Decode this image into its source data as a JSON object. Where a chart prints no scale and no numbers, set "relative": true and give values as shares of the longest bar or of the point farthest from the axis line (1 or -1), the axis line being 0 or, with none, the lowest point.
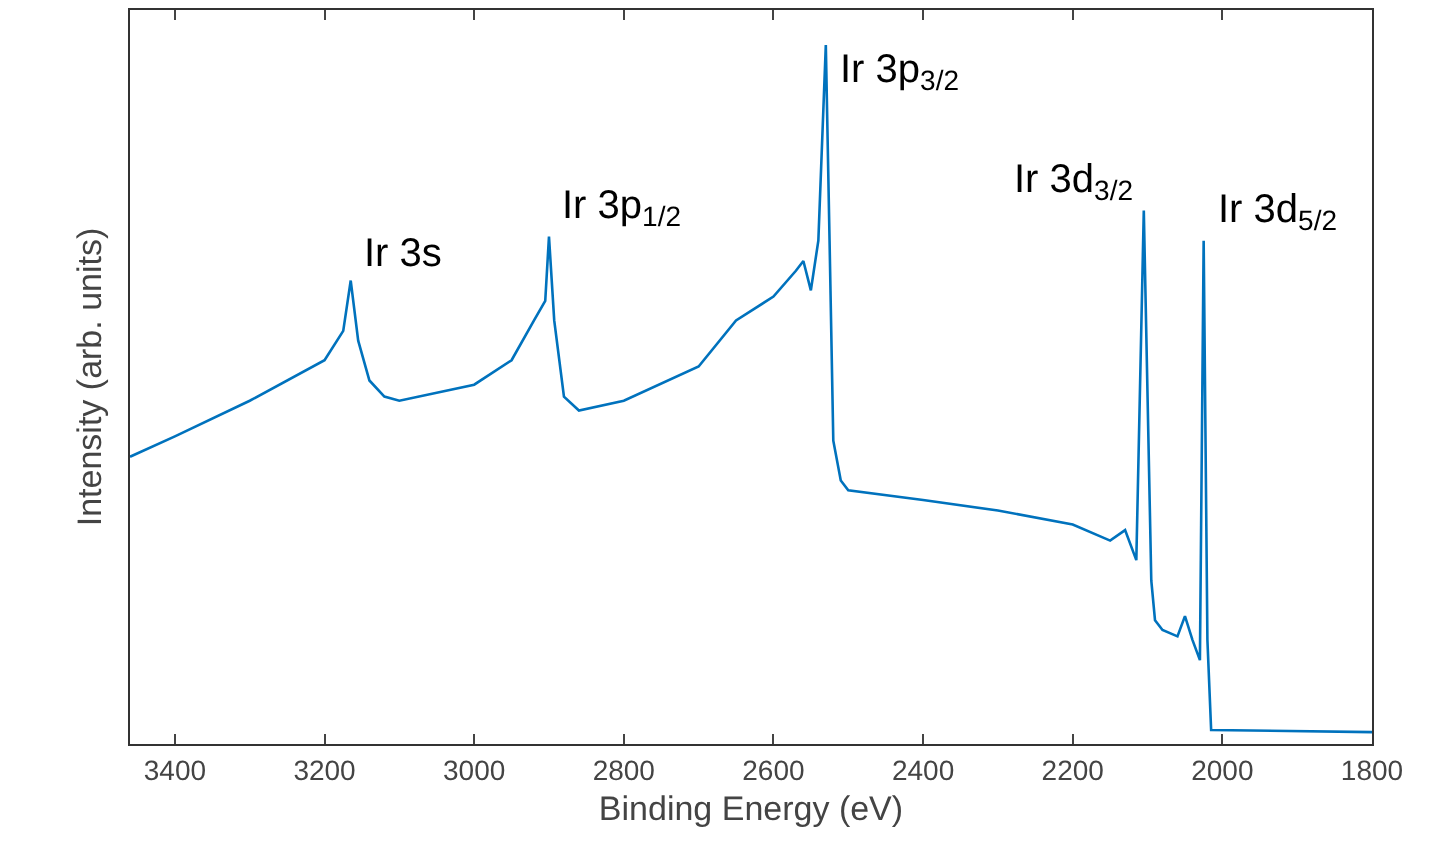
{
  "chart_data": {
    "type": "line",
    "relative": true,
    "xlabel": "Binding Energy (eV)",
    "ylabel": "Intensity (arb. units)",
    "xlim": [
      3460,
      1800
    ],
    "xticks": [
      3400,
      3200,
      3000,
      2800,
      2600,
      2400,
      2200,
      2000,
      1800
    ],
    "x": [
      3460,
      3400,
      3300,
      3200,
      3175,
      3165,
      3155,
      3140,
      3120,
      3100,
      3000,
      2950,
      2920,
      2905,
      2900,
      2893,
      2880,
      2860,
      2800,
      2700,
      2650,
      2600,
      2570,
      2560,
      2550,
      2540,
      2530,
      2525,
      2520,
      2510,
      2500,
      2400,
      2300,
      2200,
      2150,
      2130,
      2115,
      2105,
      2095,
      2090,
      2080,
      2060,
      2050,
      2040,
      2030,
      2025,
      2020,
      2015,
      1800
    ],
    "series": [
      {
        "color": "#0072bd",
        "values": [
          0.411,
          0.44,
          0.491,
          0.549,
          0.591,
          0.663,
          0.577,
          0.52,
          0.497,
          0.491,
          0.514,
          0.549,
          0.606,
          0.634,
          0.726,
          0.606,
          0.497,
          0.477,
          0.491,
          0.54,
          0.606,
          0.64,
          0.677,
          0.691,
          0.649,
          0.72,
          1,
          0.72,
          0.434,
          0.377,
          0.363,
          0.349,
          0.334,
          0.314,
          0.291,
          0.306,
          0.263,
          0.763,
          0.234,
          0.177,
          0.163,
          0.154,
          0.183,
          0.149,
          0.12,
          0.72,
          0.149,
          0.02,
          0.017
        ]
      }
    ],
    "annotations": [
      {
        "text": "Ir 3s",
        "x": 3165,
        "y": 0.663
      },
      {
        "text": "Ir 3p$_{1/2}$",
        "x": 2900,
        "y": 0.726
      },
      {
        "text": "Ir 3p$_{3/2}$",
        "x": 2530,
        "y": 1
      },
      {
        "text": "Ir 3d$_{3/2}$",
        "x": 2105,
        "y": 0.763
      },
      {
        "text": "Ir 3d$_{5/2}$",
        "x": 2025,
        "y": 0.72
      }
    ],
    "marker": "none",
    "line_style": "solid"
  }
}
